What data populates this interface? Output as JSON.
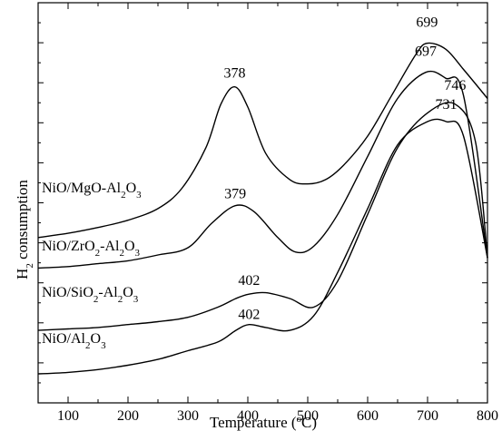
{
  "chart_data": {
    "type": "line",
    "xlabel": "Temperature (°C)",
    "ylabel": "H₂ consumption",
    "xlim": [
      50,
      800
    ],
    "x_ticks": [
      100,
      200,
      300,
      400,
      500,
      600,
      700,
      800
    ],
    "y_ticks_labeled": false,
    "grid": false,
    "legend": "none",
    "series": [
      {
        "label_sub": [
          "NiO/MgO-Al",
          "2",
          "O",
          "3",
          ""
        ],
        "x": [
          50,
          100,
          150,
          200,
          250,
          290,
          330,
          355,
          378,
          400,
          430,
          470,
          500,
          530,
          560,
          600,
          640,
          680,
          699,
          730,
          760,
          800
        ],
        "y": [
          0.07,
          0.085,
          0.105,
          0.13,
          0.17,
          0.24,
          0.38,
          0.53,
          0.59,
          0.52,
          0.36,
          0.27,
          0.255,
          0.27,
          0.32,
          0.42,
          0.56,
          0.7,
          0.74,
          0.72,
          0.65,
          0.55
        ],
        "peaks": [
          378,
          699
        ]
      },
      {
        "label_sub": [
          "NiO/ZrO",
          "2",
          "-Al",
          "2",
          "O",
          "3",
          ""
        ],
        "x": [
          50,
          100,
          150,
          200,
          250,
          300,
          340,
          379,
          410,
          450,
          480,
          510,
          550,
          600,
          650,
          697,
          730,
          760,
          800
        ],
        "y": [
          -0.035,
          -0.03,
          -0.02,
          -0.01,
          0.01,
          0.035,
          0.12,
          0.18,
          0.16,
          0.07,
          0.02,
          0.04,
          0.15,
          0.35,
          0.55,
          0.64,
          0.62,
          0.56,
          0.0
        ],
        "peaks": [
          379,
          697
        ]
      },
      {
        "label_sub": [
          "NiO/SiO",
          "2",
          "-Al",
          "2",
          "O",
          "3",
          ""
        ],
        "x": [
          50,
          100,
          150,
          200,
          250,
          300,
          350,
          380,
          402,
          430,
          470,
          510,
          550,
          600,
          650,
          700,
          746,
          780,
          800
        ],
        "y": [
          -0.25,
          -0.245,
          -0.24,
          -0.23,
          -0.22,
          -0.205,
          -0.17,
          -0.14,
          -0.125,
          -0.12,
          -0.14,
          -0.17,
          -0.08,
          0.15,
          0.38,
          0.5,
          0.53,
          0.4,
          0.0
        ],
        "peaks": [
          402,
          746
        ]
      },
      {
        "label_sub": [
          "NiO/Al",
          "2",
          "O",
          "3",
          ""
        ],
        "x": [
          50,
          100,
          150,
          200,
          250,
          300,
          350,
          380,
          402,
          430,
          470,
          510,
          550,
          600,
          650,
          700,
          731,
          760,
          800
        ],
        "y": [
          -0.4,
          -0.395,
          -0.385,
          -0.37,
          -0.35,
          -0.32,
          -0.29,
          -0.25,
          -0.23,
          -0.24,
          -0.25,
          -0.2,
          -0.05,
          0.17,
          0.39,
          0.47,
          0.47,
          0.42,
          0.0
        ],
        "peaks": [
          402,
          731
        ]
      }
    ]
  }
}
